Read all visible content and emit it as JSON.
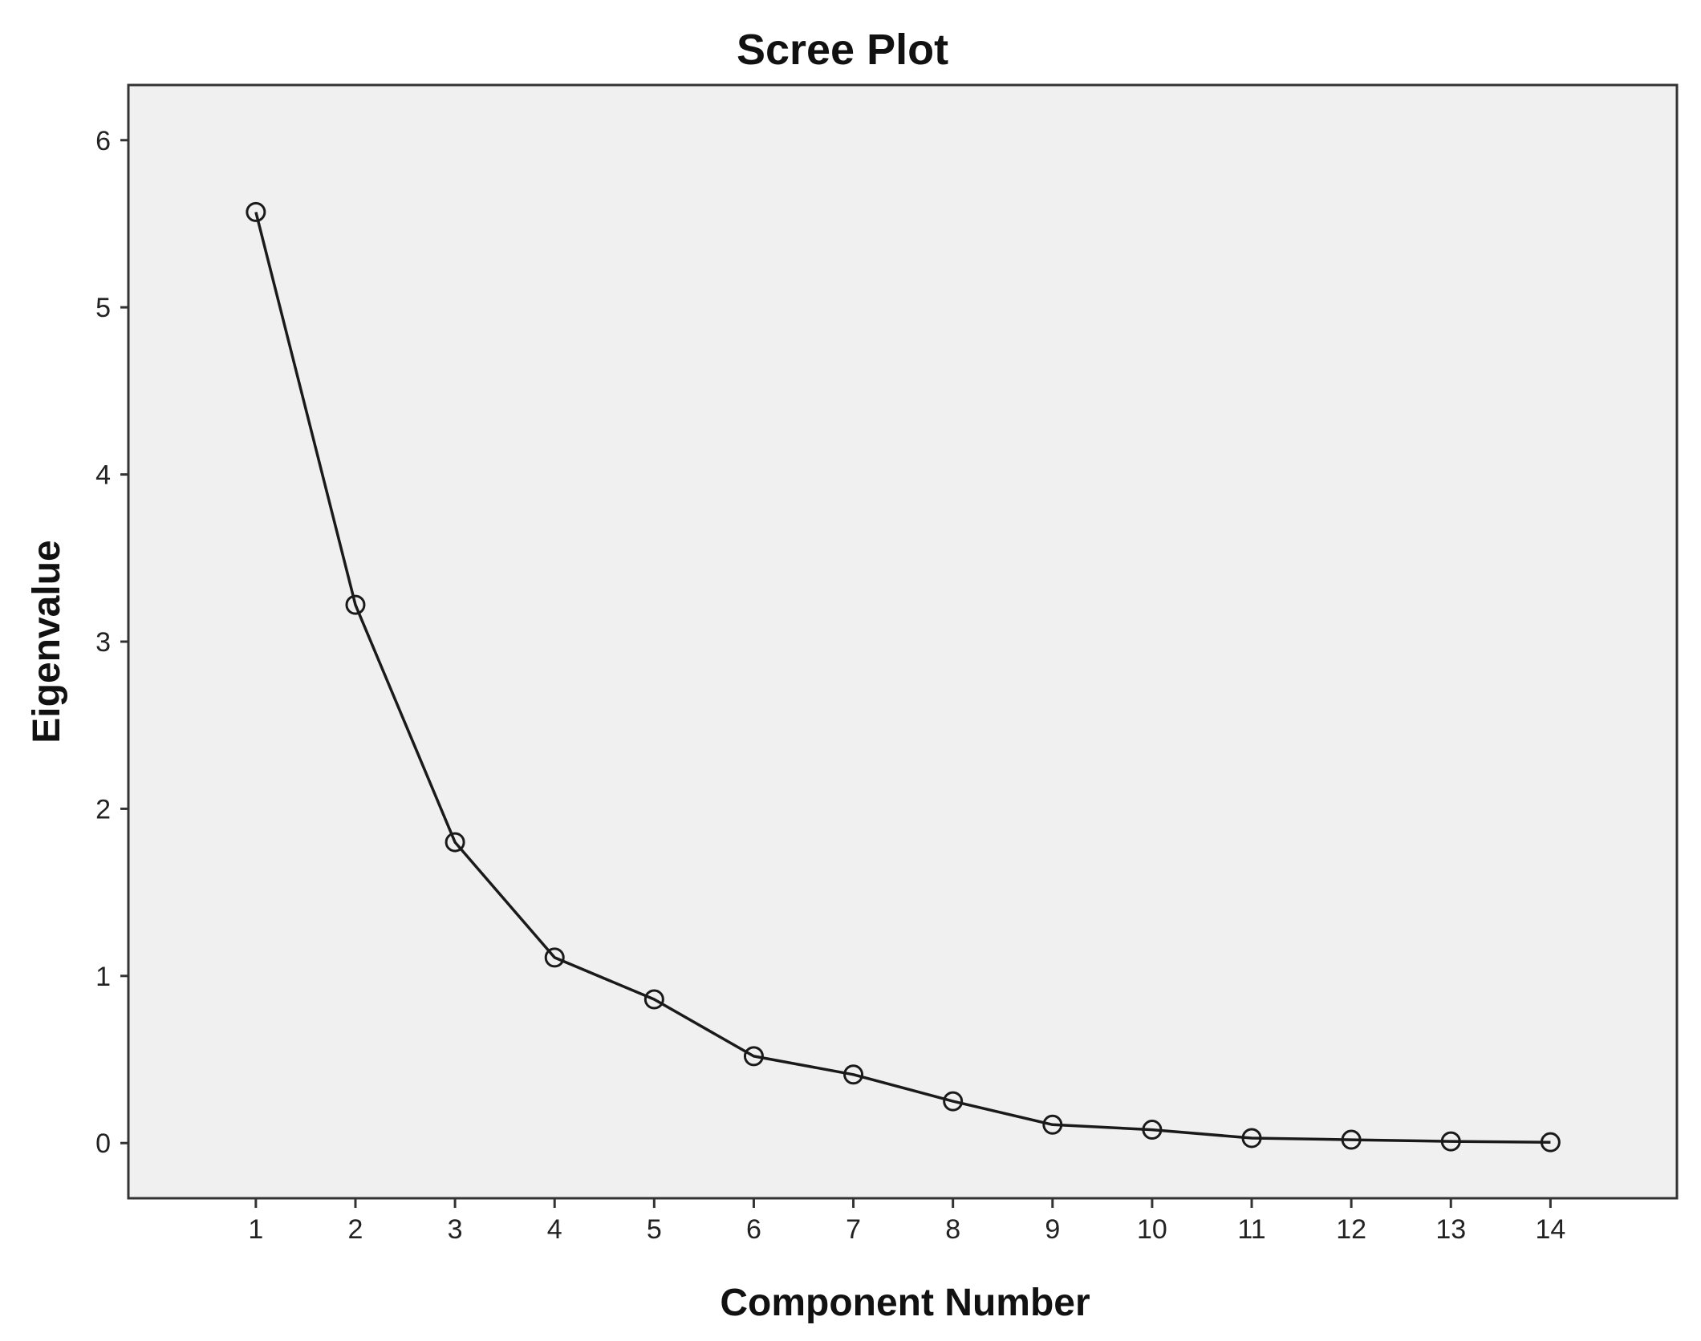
{
  "chart_data": {
    "type": "line",
    "title": "Scree Plot",
    "xlabel": "Component Number",
    "ylabel": "Eigenvalue",
    "x": [
      1,
      2,
      3,
      4,
      5,
      6,
      7,
      8,
      9,
      10,
      11,
      12,
      13,
      14
    ],
    "series": [
      {
        "values": [
          5.57,
          3.22,
          1.8,
          1.11,
          0.86,
          0.52,
          0.41,
          0.25,
          0.11,
          0.08,
          0.03,
          0.02,
          0.01,
          0.005
        ]
      }
    ],
    "xlim": [
      -0.28,
      15.27
    ],
    "ylim": [
      -0.33,
      6.33
    ],
    "xticks": [
      "1",
      "2",
      "3",
      "4",
      "5",
      "6",
      "7",
      "8",
      "9",
      "10",
      "11",
      "12",
      "13",
      "14"
    ],
    "yticks": [
      "0",
      "1",
      "2",
      "3",
      "4",
      "5",
      "6"
    ],
    "grid": false,
    "legend": "none",
    "marker": "open-circle",
    "colors": {
      "plot_background": "#f0f0f0",
      "line": "#1a1a1a",
      "frame": "#333333"
    }
  }
}
